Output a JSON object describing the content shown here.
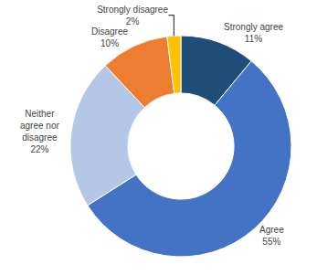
{
  "chart_data": {
    "type": "donut",
    "categories": [
      "Strongly agree",
      "Agree",
      "Neither\nagree nor\ndisagree",
      "Disagree",
      "Strongly disagree"
    ],
    "values": [
      11,
      55,
      22,
      10,
      2
    ],
    "value_labels": [
      "11%",
      "55%",
      "22%",
      "10%",
      "2%"
    ],
    "colors": [
      "#1f4e79",
      "#4472c4",
      "#b4c7e7",
      "#ed7d31",
      "#ffc000"
    ]
  }
}
